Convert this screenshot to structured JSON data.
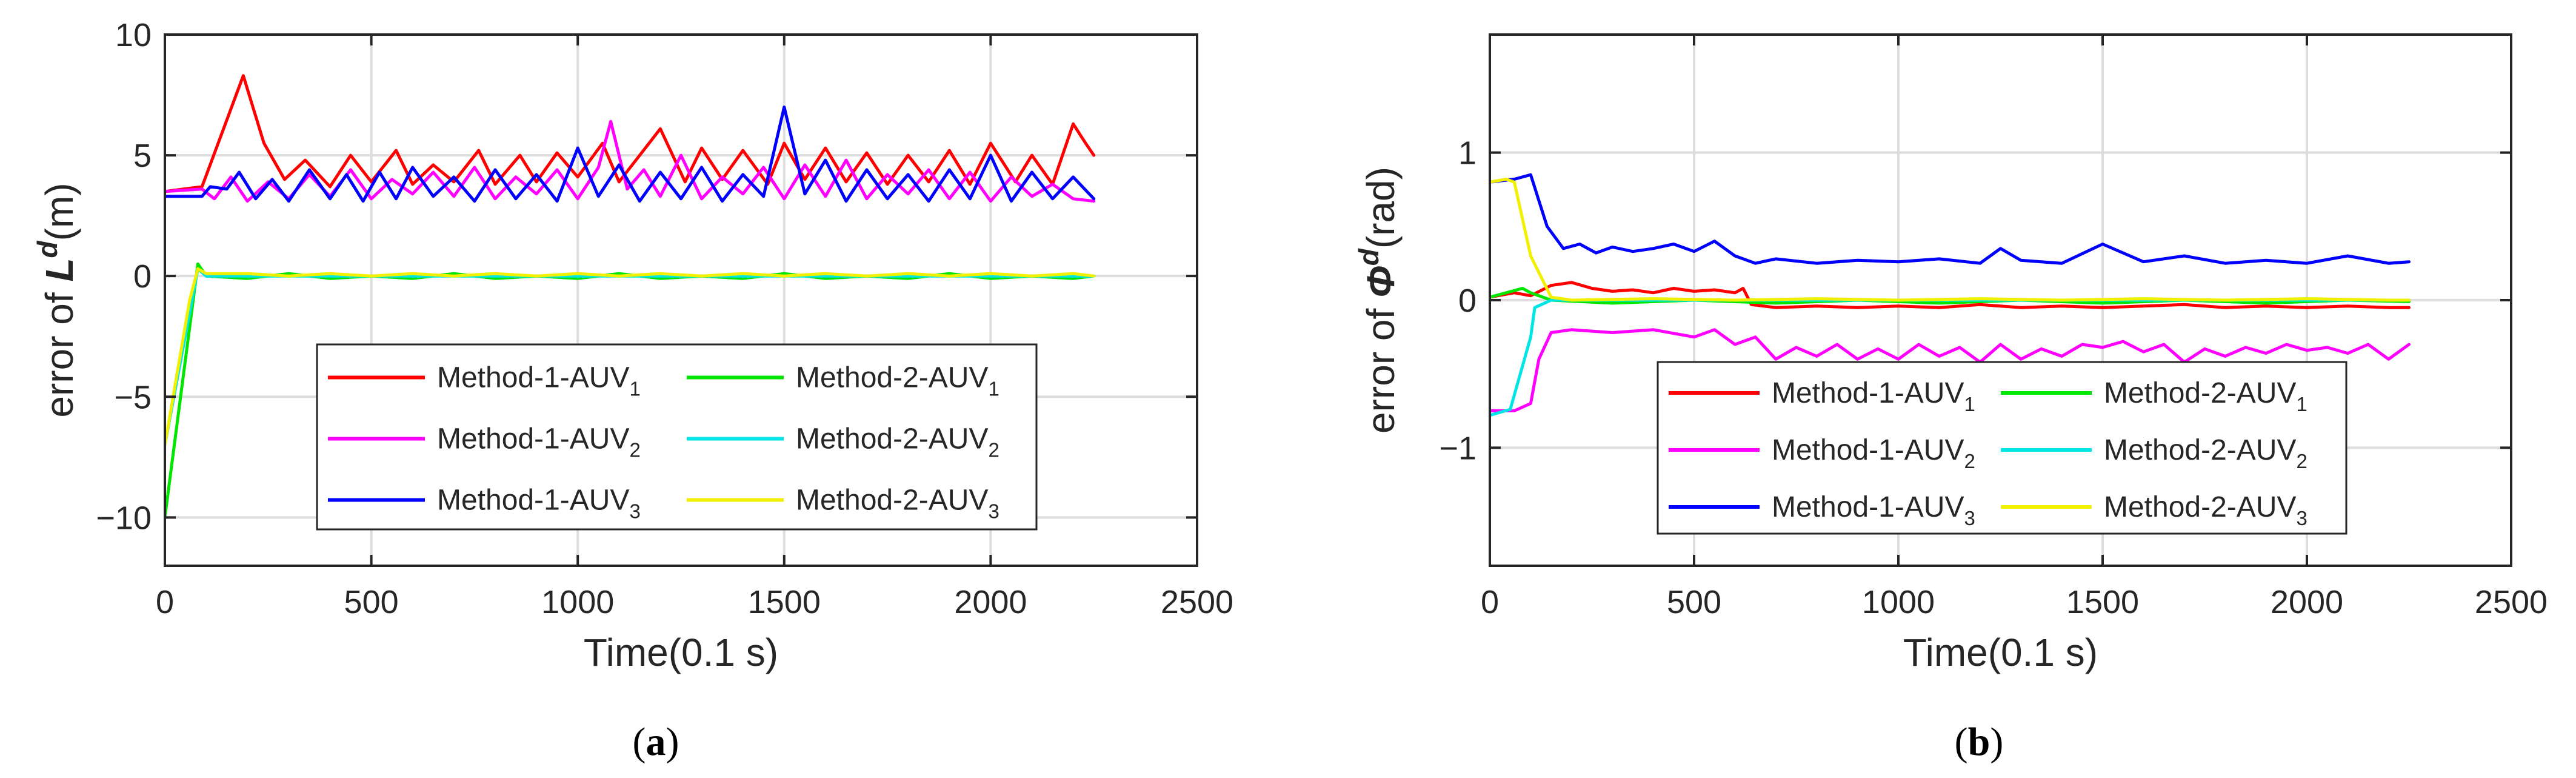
{
  "figure": {
    "panels": [
      {
        "caption_open": "(",
        "caption_letter": "a",
        "caption_close": ")"
      },
      {
        "caption_open": "(",
        "caption_letter": "b",
        "caption_close": ")"
      }
    ]
  },
  "chart_data": [
    {
      "type": "line",
      "panel": "a",
      "title": "",
      "xlabel": "Time(0.1 s)",
      "ylabel": {
        "prefix": "error of ",
        "symbol": "L",
        "superscript": "d",
        "suffix": "(m)"
      },
      "xlim": [
        0,
        2500
      ],
      "ylim": [
        -12,
        10
      ],
      "xticks": [
        0,
        500,
        1000,
        1500,
        2000,
        2500
      ],
      "yticks": [
        -10,
        -5,
        0,
        5,
        10
      ],
      "ytick_labels": [
        "−10",
        "−5",
        "0",
        "5",
        "10"
      ],
      "grid": true,
      "legend_position": "bottom-center",
      "series": [
        {
          "name": "Method-1-AUV",
          "subscript": "1",
          "color": "#ff0000",
          "x": [
            0,
            90,
            190,
            240,
            290,
            340,
            400,
            450,
            500,
            560,
            600,
            650,
            700,
            760,
            800,
            860,
            900,
            950,
            1000,
            1060,
            1100,
            1150,
            1200,
            1260,
            1300,
            1350,
            1400,
            1460,
            1500,
            1550,
            1600,
            1650,
            1700,
            1750,
            1800,
            1850,
            1900,
            1950,
            2000,
            2060,
            2100,
            2150,
            2200,
            2230,
            2250
          ],
          "values": [
            3.5,
            3.7,
            8.3,
            5.5,
            4.0,
            4.8,
            3.7,
            5.0,
            3.9,
            5.2,
            3.8,
            4.6,
            3.9,
            5.2,
            3.8,
            5.0,
            3.9,
            5.1,
            4.1,
            5.5,
            3.9,
            5.0,
            6.1,
            3.9,
            5.3,
            4.0,
            5.2,
            3.8,
            5.5,
            4.0,
            5.3,
            3.9,
            5.1,
            3.8,
            5.0,
            3.9,
            5.2,
            3.8,
            5.5,
            3.9,
            5.0,
            3.8,
            6.3,
            5.5,
            5.0
          ]
        },
        {
          "name": "Method-1-AUV",
          "subscript": "2",
          "color": "#ff00ff",
          "x": [
            0,
            90,
            120,
            160,
            200,
            250,
            300,
            350,
            400,
            450,
            500,
            550,
            600,
            650,
            700,
            750,
            800,
            850,
            900,
            950,
            1000,
            1050,
            1080,
            1120,
            1160,
            1200,
            1250,
            1300,
            1350,
            1400,
            1450,
            1500,
            1550,
            1600,
            1650,
            1700,
            1750,
            1800,
            1850,
            1900,
            1950,
            2000,
            2050,
            2100,
            2150,
            2200,
            2250
          ],
          "values": [
            3.5,
            3.6,
            3.2,
            4.1,
            3.1,
            3.9,
            3.2,
            4.2,
            3.3,
            4.4,
            3.2,
            4.0,
            3.4,
            4.3,
            3.3,
            4.5,
            3.2,
            4.1,
            3.4,
            4.4,
            3.2,
            4.5,
            6.4,
            3.6,
            4.4,
            3.3,
            5.0,
            3.2,
            4.1,
            3.4,
            4.5,
            3.2,
            4.6,
            3.3,
            4.8,
            3.2,
            4.2,
            3.4,
            4.4,
            3.2,
            4.3,
            3.1,
            4.1,
            3.3,
            3.8,
            3.2,
            3.1
          ]
        },
        {
          "name": "Method-1-AUV",
          "subscript": "3",
          "color": "#0000ff",
          "x": [
            0,
            90,
            110,
            150,
            180,
            220,
            260,
            300,
            350,
            400,
            440,
            480,
            520,
            560,
            600,
            650,
            700,
            750,
            800,
            850,
            900,
            950,
            1000,
            1050,
            1100,
            1150,
            1200,
            1250,
            1300,
            1350,
            1400,
            1450,
            1500,
            1550,
            1600,
            1650,
            1700,
            1750,
            1800,
            1850,
            1900,
            1950,
            2000,
            2050,
            2100,
            2150,
            2200,
            2250
          ],
          "values": [
            3.3,
            3.3,
            3.7,
            3.6,
            4.3,
            3.2,
            4.0,
            3.1,
            4.4,
            3.2,
            4.2,
            3.1,
            4.3,
            3.2,
            4.5,
            3.3,
            4.1,
            3.1,
            4.4,
            3.2,
            4.2,
            3.1,
            5.3,
            3.3,
            4.6,
            3.1,
            4.3,
            3.2,
            4.5,
            3.1,
            4.2,
            3.3,
            7.0,
            3.4,
            4.8,
            3.1,
            4.4,
            3.2,
            4.2,
            3.1,
            4.4,
            3.2,
            5.0,
            3.1,
            4.3,
            3.2,
            4.1,
            3.2
          ]
        },
        {
          "name": "Method-2-AUV",
          "subscript": "1",
          "color": "#00e600",
          "x": [
            0,
            80,
            100,
            200,
            300,
            400,
            500,
            600,
            700,
            800,
            900,
            1000,
            1100,
            1200,
            1300,
            1400,
            1500,
            1600,
            1700,
            1800,
            1900,
            2000,
            2100,
            2200,
            2250
          ],
          "values": [
            -10,
            0.5,
            0.0,
            -0.1,
            0.1,
            -0.1,
            0.0,
            -0.1,
            0.1,
            -0.1,
            0.0,
            -0.1,
            0.1,
            -0.1,
            0.0,
            -0.1,
            0.1,
            -0.1,
            0.0,
            -0.1,
            0.1,
            -0.1,
            0.0,
            -0.1,
            0.0
          ]
        },
        {
          "name": "Method-2-AUV",
          "subscript": "2",
          "color": "#00e6e6",
          "x": [
            0,
            80,
            100,
            300,
            500,
            700,
            900,
            1100,
            1300,
            1500,
            1700,
            1900,
            2100,
            2250
          ],
          "values": [
            -7,
            0.3,
            0.0,
            0.0,
            0.0,
            0.0,
            0.0,
            0.0,
            0.0,
            0.0,
            0.0,
            0.0,
            0.0,
            0.0
          ]
        },
        {
          "name": "Method-2-AUV",
          "subscript": "3",
          "color": "#f0f000",
          "x": [
            0,
            60,
            80,
            100,
            200,
            300,
            400,
            500,
            600,
            700,
            800,
            900,
            1000,
            1100,
            1200,
            1300,
            1400,
            1500,
            1600,
            1700,
            1800,
            1900,
            2000,
            2100,
            2200,
            2250
          ],
          "values": [
            -7,
            -1.0,
            0.3,
            0.1,
            0.1,
            0.0,
            0.1,
            0.0,
            0.1,
            0.0,
            0.1,
            0.0,
            0.1,
            0.0,
            0.1,
            0.0,
            0.1,
            0.0,
            0.1,
            0.0,
            0.1,
            0.0,
            0.1,
            0.0,
            0.1,
            0.0
          ]
        }
      ]
    },
    {
      "type": "line",
      "panel": "b",
      "title": "",
      "xlabel": "Time(0.1 s)",
      "ylabel": {
        "prefix": "error of ",
        "symbol": "Φ",
        "superscript": "d",
        "suffix": "(rad)"
      },
      "xlim": [
        0,
        2500
      ],
      "ylim": [
        -1.8,
        1.8
      ],
      "xticks": [
        0,
        500,
        1000,
        1500,
        2000,
        2500
      ],
      "yticks": [
        -1,
        0,
        1
      ],
      "ytick_labels": [
        "−1",
        "0",
        "1"
      ],
      "grid": true,
      "legend_position": "bottom-center",
      "series": [
        {
          "name": "Method-1-AUV",
          "subscript": "1",
          "color": "#ff0000",
          "x": [
            0,
            60,
            100,
            150,
            200,
            250,
            300,
            350,
            400,
            450,
            500,
            550,
            600,
            620,
            640,
            700,
            800,
            900,
            1000,
            1100,
            1200,
            1300,
            1400,
            1500,
            1600,
            1700,
            1800,
            1900,
            2000,
            2100,
            2200,
            2250
          ],
          "values": [
            0.02,
            0.05,
            0.03,
            0.1,
            0.12,
            0.08,
            0.06,
            0.07,
            0.05,
            0.08,
            0.06,
            0.07,
            0.05,
            0.08,
            -0.03,
            -0.05,
            -0.04,
            -0.05,
            -0.04,
            -0.05,
            -0.03,
            -0.05,
            -0.04,
            -0.05,
            -0.04,
            -0.03,
            -0.05,
            -0.04,
            -0.05,
            -0.04,
            -0.05,
            -0.05
          ]
        },
        {
          "name": "Method-1-AUV",
          "subscript": "2",
          "color": "#ff00ff",
          "x": [
            0,
            60,
            100,
            120,
            150,
            200,
            300,
            400,
            500,
            550,
            600,
            650,
            700,
            750,
            800,
            850,
            900,
            950,
            1000,
            1050,
            1100,
            1150,
            1200,
            1250,
            1300,
            1350,
            1400,
            1450,
            1500,
            1550,
            1600,
            1650,
            1700,
            1750,
            1800,
            1850,
            1900,
            1950,
            2000,
            2050,
            2100,
            2150,
            2200,
            2250
          ],
          "values": [
            -0.75,
            -0.75,
            -0.7,
            -0.4,
            -0.22,
            -0.2,
            -0.22,
            -0.2,
            -0.25,
            -0.2,
            -0.3,
            -0.25,
            -0.4,
            -0.32,
            -0.38,
            -0.3,
            -0.4,
            -0.33,
            -0.4,
            -0.3,
            -0.38,
            -0.32,
            -0.42,
            -0.3,
            -0.4,
            -0.33,
            -0.38,
            -0.3,
            -0.32,
            -0.28,
            -0.35,
            -0.3,
            -0.42,
            -0.33,
            -0.38,
            -0.32,
            -0.36,
            -0.3,
            -0.34,
            -0.32,
            -0.36,
            -0.3,
            -0.4,
            -0.3
          ]
        },
        {
          "name": "Method-1-AUV",
          "subscript": "3",
          "color": "#0000ff",
          "x": [
            0,
            60,
            100,
            140,
            180,
            220,
            260,
            300,
            350,
            400,
            450,
            500,
            550,
            600,
            650,
            700,
            800,
            900,
            1000,
            1100,
            1200,
            1250,
            1300,
            1400,
            1500,
            1600,
            1700,
            1800,
            1900,
            2000,
            2100,
            2200,
            2250
          ],
          "values": [
            0.8,
            0.82,
            0.85,
            0.5,
            0.35,
            0.38,
            0.32,
            0.36,
            0.33,
            0.35,
            0.38,
            0.33,
            0.4,
            0.3,
            0.25,
            0.28,
            0.25,
            0.27,
            0.26,
            0.28,
            0.25,
            0.35,
            0.27,
            0.25,
            0.38,
            0.26,
            0.3,
            0.25,
            0.27,
            0.25,
            0.3,
            0.25,
            0.26
          ]
        },
        {
          "name": "Method-2-AUV",
          "subscript": "1",
          "color": "#00e600",
          "x": [
            0,
            80,
            100,
            150,
            300,
            500,
            700,
            900,
            1100,
            1300,
            1500,
            1700,
            1900,
            2100,
            2250
          ],
          "values": [
            0.02,
            0.08,
            0.05,
            0.0,
            -0.02,
            0.0,
            -0.02,
            0.0,
            -0.02,
            0.0,
            -0.02,
            0.0,
            -0.02,
            0.0,
            -0.01
          ]
        },
        {
          "name": "Method-2-AUV",
          "subscript": "2",
          "color": "#00e6e6",
          "x": [
            0,
            50,
            100,
            110,
            150,
            300,
            500,
            700,
            900,
            1100,
            1300,
            1500,
            1700,
            1900,
            2100,
            2250
          ],
          "values": [
            -0.78,
            -0.74,
            -0.25,
            -0.05,
            0.0,
            0.0,
            0.0,
            0.0,
            0.0,
            0.0,
            0.0,
            0.0,
            0.0,
            0.0,
            0.0,
            0.0
          ]
        },
        {
          "name": "Method-2-AUV",
          "subscript": "3",
          "color": "#f0f000",
          "x": [
            0,
            40,
            60,
            100,
            150,
            200,
            400,
            600,
            800,
            1000,
            1200,
            1400,
            1600,
            1800,
            2000,
            2200,
            2250
          ],
          "values": [
            0.8,
            0.82,
            0.8,
            0.3,
            0.02,
            0.0,
            0.01,
            0.0,
            0.01,
            0.0,
            0.01,
            0.0,
            0.01,
            0.0,
            0.01,
            0.0,
            0.0
          ]
        }
      ]
    }
  ]
}
